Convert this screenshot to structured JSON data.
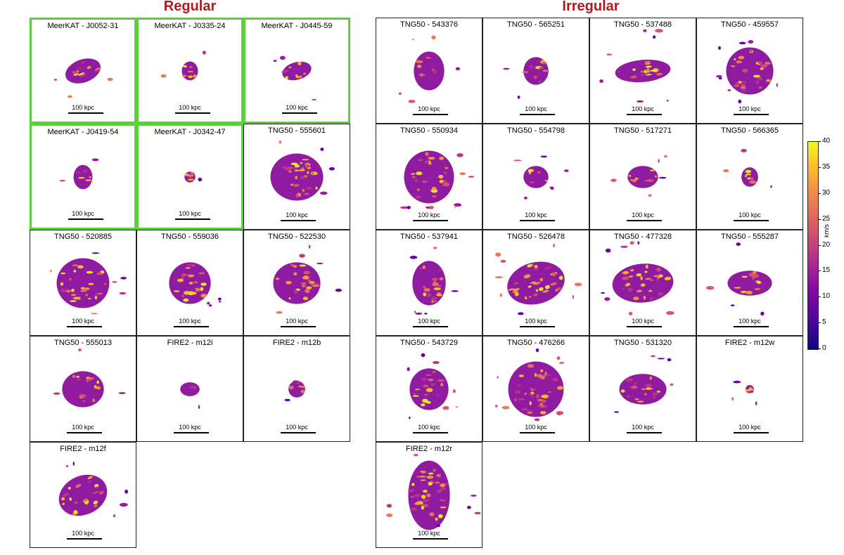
{
  "headings": {
    "regular": "Regular",
    "irregular": "Irregular"
  },
  "colors": {
    "heading": "#b01c1c",
    "highlight_border": "#5ad13a"
  },
  "scale_label": "100 kpc",
  "regular": [
    {
      "title": "MeerKAT - J0052-31",
      "highlight": true
    },
    {
      "title": "MeerKAT - J0335-24",
      "highlight": true
    },
    {
      "title": "MeerKAT - J0445-59",
      "highlight": true
    },
    {
      "title": "MeerKAT - J0419-54",
      "highlight": true
    },
    {
      "title": "MeerKAT - J0342-47",
      "highlight": true
    },
    {
      "title": "TNG50 - 555601",
      "highlight": false
    },
    {
      "title": "TNG50 - 520885",
      "highlight": false
    },
    {
      "title": "TNG50 - 559036",
      "highlight": false
    },
    {
      "title": "TNG50 - 522530",
      "highlight": false
    },
    {
      "title": "TNG50 - 555013",
      "highlight": false
    },
    {
      "title": "FIRE2 - m12i",
      "highlight": false
    },
    {
      "title": "FIRE2 - m12b",
      "highlight": false
    },
    {
      "title": "FIRE2 - m12f",
      "highlight": false
    }
  ],
  "irregular": [
    {
      "title": "TNG50 - 543376"
    },
    {
      "title": "TNG50 - 565251"
    },
    {
      "title": "TNG50 - 537488"
    },
    {
      "title": "TNG50 - 459557"
    },
    {
      "title": "TNG50 - 550934"
    },
    {
      "title": "TNG50 - 554798"
    },
    {
      "title": "TNG50 - 517271"
    },
    {
      "title": "TNG50 - 566365"
    },
    {
      "title": "TNG50 - 537941"
    },
    {
      "title": "TNG50 - 526478"
    },
    {
      "title": "TNG50 - 477328"
    },
    {
      "title": "TNG50 - 555287"
    },
    {
      "title": "TNG50 - 543729"
    },
    {
      "title": "TNG50 - 476266"
    },
    {
      "title": "TNG50 - 531320"
    },
    {
      "title": "FIRE2 - m12w"
    },
    {
      "title": "FIRE2 - m12r"
    }
  ],
  "colorbar": {
    "label": "km/s",
    "ticks": [
      "0",
      "5",
      "10",
      "15",
      "20",
      "25",
      "30",
      "35",
      "40"
    ],
    "min": 0,
    "max": 40
  }
}
